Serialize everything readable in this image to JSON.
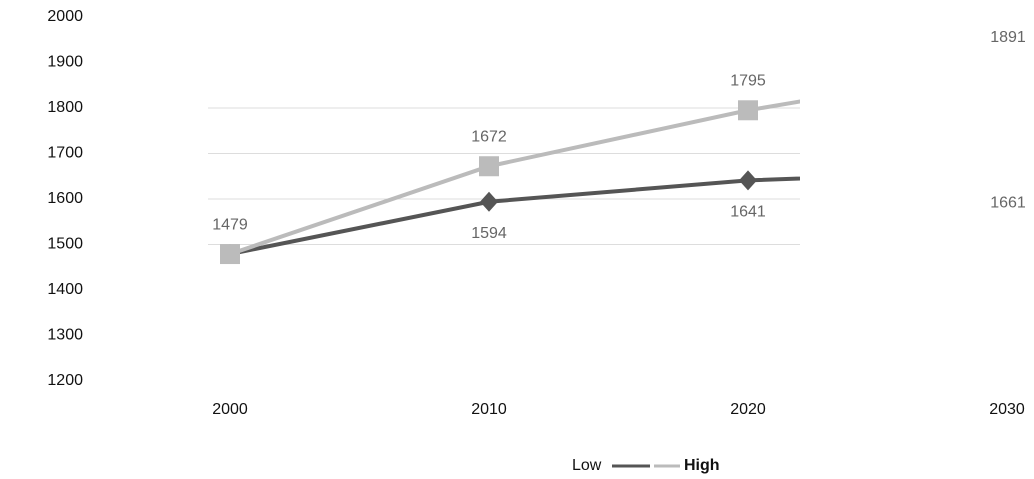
{
  "chart_data": {
    "type": "line",
    "categories": [
      "2000",
      "2010",
      "2020",
      "2030"
    ],
    "series": [
      {
        "name": "Low",
        "color": "#555555",
        "marker": "diamond",
        "values": [
          1479,
          1594,
          1641,
          1661
        ]
      },
      {
        "name": "High",
        "color": "#bbbbbb",
        "marker": "square",
        "values": [
          1479,
          1672,
          1795,
          1891
        ]
      }
    ],
    "ylim": [
      1200,
      2000
    ],
    "yticks": [
      1200,
      1300,
      1400,
      1500,
      1600,
      1700,
      1800,
      1900,
      2000
    ],
    "grid": true
  }
}
